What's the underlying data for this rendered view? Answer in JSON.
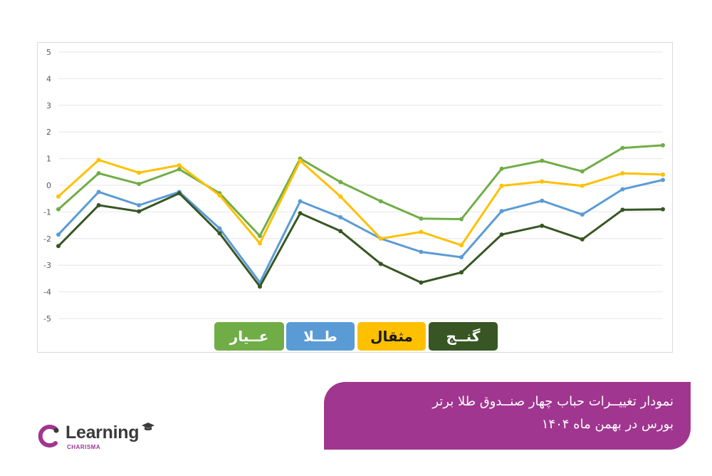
{
  "chart_data": {
    "type": "line",
    "title": "",
    "xlabel": "",
    "ylabel": "",
    "ylim": [
      -5,
      5
    ],
    "yticks": [
      5,
      4,
      3,
      2,
      1,
      0,
      -1,
      -2,
      -3,
      -4,
      -5
    ],
    "grid": true,
    "legend_position": "bottom",
    "x": [
      1,
      2,
      3,
      4,
      5,
      6,
      7,
      8,
      9,
      10,
      11,
      12,
      13,
      14,
      15,
      16
    ],
    "series": [
      {
        "name": "عیار",
        "color": "#70ad47",
        "values": [
          -0.9,
          0.45,
          0.05,
          0.6,
          -0.3,
          -1.9,
          1.0,
          0.12,
          -0.6,
          -1.25,
          -1.27,
          0.62,
          0.92,
          0.52,
          1.4,
          1.5
        ]
      },
      {
        "name": "طلا",
        "color": "#5b9bd5",
        "values": [
          -1.85,
          -0.25,
          -0.75,
          -0.25,
          -1.62,
          -3.65,
          -0.6,
          -1.2,
          -2.0,
          -2.5,
          -2.7,
          -0.97,
          -0.58,
          -1.1,
          -0.15,
          0.2
        ]
      },
      {
        "name": "مثقال",
        "color": "#ffc000",
        "values": [
          -0.42,
          0.95,
          0.47,
          0.75,
          -0.38,
          -2.18,
          0.92,
          -0.42,
          -2.0,
          -1.75,
          -2.25,
          -0.02,
          0.14,
          -0.02,
          0.45,
          0.4
        ]
      },
      {
        "name": "گنـج",
        "color": "#375623",
        "values": [
          -2.28,
          -0.75,
          -0.98,
          -0.3,
          -1.8,
          -3.8,
          -1.05,
          -1.72,
          -2.95,
          -3.65,
          -3.27,
          -1.85,
          -1.52,
          -2.03,
          -0.92,
          -0.9
        ]
      }
    ]
  },
  "legend": [
    {
      "label": "عــیار",
      "bg": "#70ad47",
      "fg": "#ffffff"
    },
    {
      "label": "طــلا",
      "bg": "#5b9bd5",
      "fg": "#ffffff"
    },
    {
      "label": "مثقال",
      "bg": "#ffc000",
      "fg": "#1a1a1a"
    },
    {
      "label": "گنــج",
      "bg": "#375623",
      "fg": "#ffffff"
    }
  ],
  "caption": {
    "line1": "نمودار تغییــرات حباب چهار صنــدوق طلا برتر",
    "line2": "بورس در بهمن ماه ۱۴۰۴",
    "bg": "#a0368f"
  },
  "logo": {
    "word": "Learning",
    "sub": "CHARISMA",
    "icon": "charisma-c-icon",
    "accent": "#a0368f"
  }
}
